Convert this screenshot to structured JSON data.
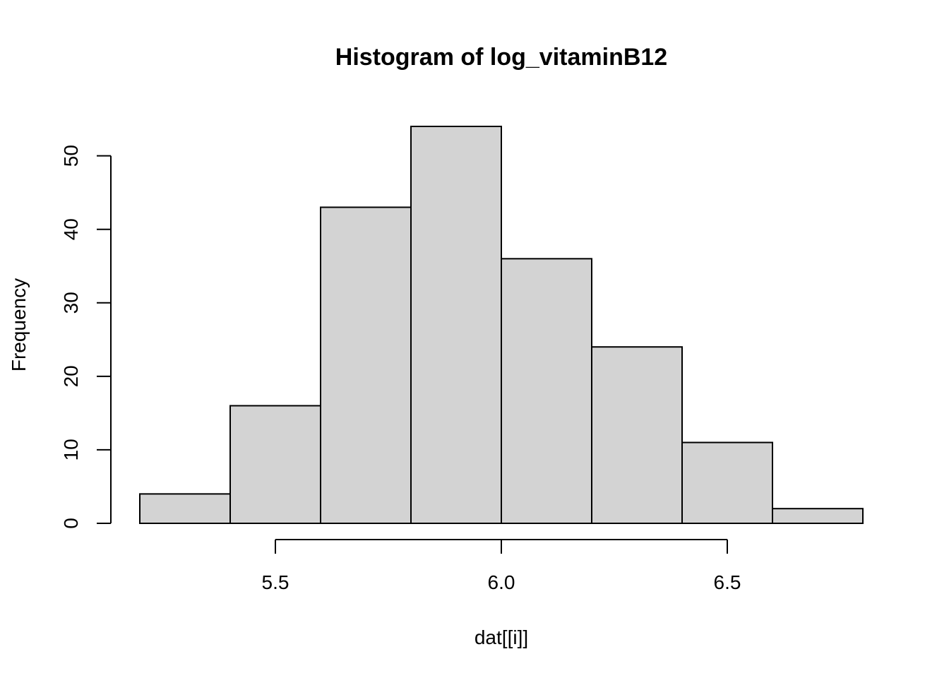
{
  "chart_data": {
    "type": "bar",
    "title": "Histogram of log_vitaminB12",
    "xlabel": "dat[[i]]",
    "ylabel": "Frequency",
    "bin_edges": [
      5.2,
      5.4,
      5.6,
      5.8,
      6.0,
      6.2,
      6.4,
      6.6,
      6.8
    ],
    "values": [
      4,
      16,
      43,
      54,
      36,
      24,
      11,
      2
    ],
    "x_ticks": [
      5.5,
      6.0,
      6.5
    ],
    "x_tick_labels": [
      "5.5",
      "6.0",
      "6.5"
    ],
    "y_ticks": [
      0,
      10,
      20,
      30,
      40,
      50
    ],
    "y_tick_labels": [
      "0",
      "10",
      "20",
      "30",
      "40",
      "50"
    ],
    "xlim": [
      5.2,
      6.8
    ],
    "ylim": [
      0,
      54
    ],
    "grid": false,
    "bar_color": "#d3d3d3",
    "border_color": "#000000"
  }
}
